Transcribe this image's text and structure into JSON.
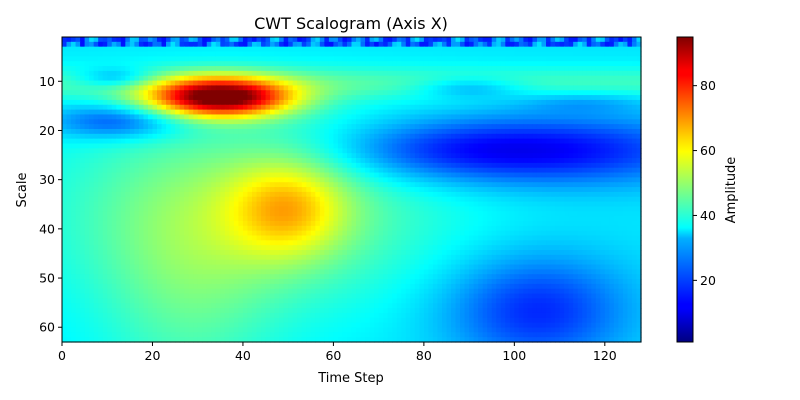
{
  "chart_data": {
    "type": "heatmap",
    "title": "CWT Scalogram (Axis X)",
    "xlabel": "Time Step",
    "ylabel": "Scale",
    "xlim": [
      0,
      128
    ],
    "ylim": [
      63,
      1
    ],
    "x_ticks": [
      "0",
      "20",
      "40",
      "60",
      "80",
      "100",
      "120"
    ],
    "y_ticks": [
      "10",
      "20",
      "30",
      "40",
      "50",
      "60"
    ],
    "colorbar": {
      "label": "Amplitude",
      "colormap": "jet",
      "range": [
        1,
        95
      ],
      "ticks": [
        "20",
        "40",
        "60",
        "80"
      ]
    },
    "components": [
      {
        "name": "high-frequency edge band",
        "scale": [
          1,
          3
        ],
        "time": [
          0,
          128
        ],
        "amplitude": 35
      },
      {
        "name": "ridge upper band",
        "scale": [
          6,
          12
        ],
        "time": [
          0,
          128
        ],
        "amplitude": 45
      },
      {
        "name": "peak ridge",
        "scale": [
          10,
          16
        ],
        "time": [
          24,
          50
        ],
        "amplitude": 92
      },
      {
        "name": "mid-scale plateau",
        "scale": [
          20,
          45
        ],
        "time": [
          25,
          70
        ],
        "amplitude": 57
      },
      {
        "name": "secondary hotspot",
        "scale": [
          33,
          40
        ],
        "time": [
          45,
          57
        ],
        "amplitude": 68
      },
      {
        "name": "low-scale tail",
        "scale": [
          45,
          63
        ],
        "time": [
          0,
          70
        ],
        "amplitude": 48
      },
      {
        "name": "right quiet region",
        "scale": [
          17,
          30
        ],
        "time": [
          70,
          128
        ],
        "amplitude": 12
      },
      {
        "name": "right low-frequency trough",
        "scale": [
          48,
          63
        ],
        "time": [
          95,
          115
        ],
        "amplitude": 5
      }
    ]
  }
}
